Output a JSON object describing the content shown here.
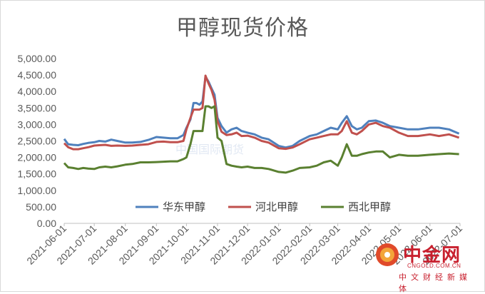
{
  "chart_data": {
    "type": "line",
    "title": "甲醇现货价格",
    "xlabel": "",
    "ylabel": "",
    "ylim": [
      0,
      5000
    ],
    "yticks": [
      "5,000.00",
      "4,500.00",
      "4,000.00",
      "3,500.00",
      "3,000.00",
      "2,500.00",
      "2,000.00",
      "1,500.00",
      "1,000.00",
      "500.00",
      "0.00"
    ],
    "xticks": [
      "2021-06-01",
      "2021-07-01",
      "2021-08-01",
      "2021-09-01",
      "2021-10-01",
      "2021-11-01",
      "2021-12-01",
      "2022-01-01",
      "2022-02-01",
      "2022-03-01",
      "2022-04-01",
      "2022-05-01",
      "2022-06-01",
      "2022-07-01"
    ],
    "legend_position": "bottom-inside",
    "grid": false,
    "x": [
      "2021-06-01",
      "2021-06-05",
      "2021-06-10",
      "2021-06-15",
      "2021-06-20",
      "2021-06-25",
      "2021-07-01",
      "2021-07-06",
      "2021-07-12",
      "2021-07-18",
      "2021-07-24",
      "2021-08-01",
      "2021-08-08",
      "2021-08-16",
      "2021-08-24",
      "2021-09-01",
      "2021-09-08",
      "2021-09-15",
      "2021-09-22",
      "2021-09-28",
      "2021-10-01",
      "2021-10-05",
      "2021-10-08",
      "2021-10-11",
      "2021-10-14",
      "2021-10-17",
      "2021-10-20",
      "2021-10-23",
      "2021-10-26",
      "2021-10-29",
      "2021-11-01",
      "2021-11-05",
      "2021-11-10",
      "2021-11-15",
      "2021-11-20",
      "2021-11-25",
      "2021-12-01",
      "2021-12-08",
      "2021-12-15",
      "2021-12-22",
      "2022-01-01",
      "2022-01-08",
      "2022-01-15",
      "2022-01-22",
      "2022-02-01",
      "2022-02-08",
      "2022-02-15",
      "2022-02-22",
      "2022-03-01",
      "2022-03-05",
      "2022-03-10",
      "2022-03-15",
      "2022-03-20",
      "2022-03-25",
      "2022-04-01",
      "2022-04-08",
      "2022-04-15",
      "2022-04-22",
      "2022-05-01",
      "2022-05-10",
      "2022-05-20",
      "2022-06-01",
      "2022-06-10",
      "2022-06-20",
      "2022-06-30"
    ],
    "series": [
      {
        "name": "华东甲醇",
        "color": "#4f81bd",
        "values": [
          2560,
          2400,
          2380,
          2370,
          2410,
          2440,
          2460,
          2500,
          2480,
          2540,
          2500,
          2450,
          2450,
          2470,
          2530,
          2620,
          2600,
          2580,
          2580,
          2680,
          2900,
          3150,
          3650,
          3650,
          3600,
          3700,
          4450,
          4300,
          4100,
          3900,
          3200,
          2950,
          2750,
          2850,
          2900,
          2800,
          2750,
          2700,
          2600,
          2550,
          2350,
          2300,
          2350,
          2500,
          2650,
          2700,
          2800,
          2900,
          2850,
          3050,
          3250,
          2950,
          2850,
          2900,
          3100,
          3120,
          3050,
          2950,
          2900,
          2850,
          2850,
          2900,
          2900,
          2850,
          2720
        ]
      },
      {
        "name": "河北甲醇",
        "color": "#c0504d",
        "values": [
          2430,
          2310,
          2250,
          2250,
          2280,
          2310,
          2360,
          2370,
          2380,
          2350,
          2360,
          2350,
          2360,
          2380,
          2400,
          2470,
          2480,
          2460,
          2460,
          2500,
          2850,
          3200,
          3450,
          3450,
          3450,
          3500,
          4480,
          4250,
          4050,
          3750,
          3100,
          2780,
          2680,
          2700,
          2750,
          2650,
          2660,
          2600,
          2500,
          2450,
          2280,
          2260,
          2300,
          2400,
          2550,
          2600,
          2650,
          2700,
          2700,
          2800,
          3100,
          2750,
          2700,
          2800,
          3000,
          3050,
          2950,
          2900,
          2750,
          2650,
          2650,
          2700,
          2650,
          2700,
          2600
        ]
      },
      {
        "name": "西北甲醇",
        "color": "#5a8030",
        "values": [
          1830,
          1700,
          1680,
          1650,
          1680,
          1660,
          1650,
          1700,
          1720,
          1700,
          1730,
          1780,
          1800,
          1850,
          1850,
          1860,
          1870,
          1880,
          1880,
          1950,
          2000,
          2400,
          2800,
          2800,
          2800,
          2800,
          3550,
          3550,
          3500,
          3550,
          2600,
          2500,
          1800,
          1750,
          1720,
          1700,
          1720,
          1680,
          1680,
          1650,
          1560,
          1540,
          1600,
          1680,
          1700,
          1750,
          1850,
          1900,
          1750,
          2000,
          2400,
          2050,
          2050,
          2100,
          2150,
          2180,
          2180,
          2000,
          2080,
          2050,
          2050,
          2080,
          2100,
          2120,
          2100
        ]
      }
    ]
  },
  "watermark": "中国国际期货",
  "logo": {
    "name": "中金网",
    "url": "CNGOLD.COM.CN",
    "subtitle": "中文财经新媒体"
  }
}
